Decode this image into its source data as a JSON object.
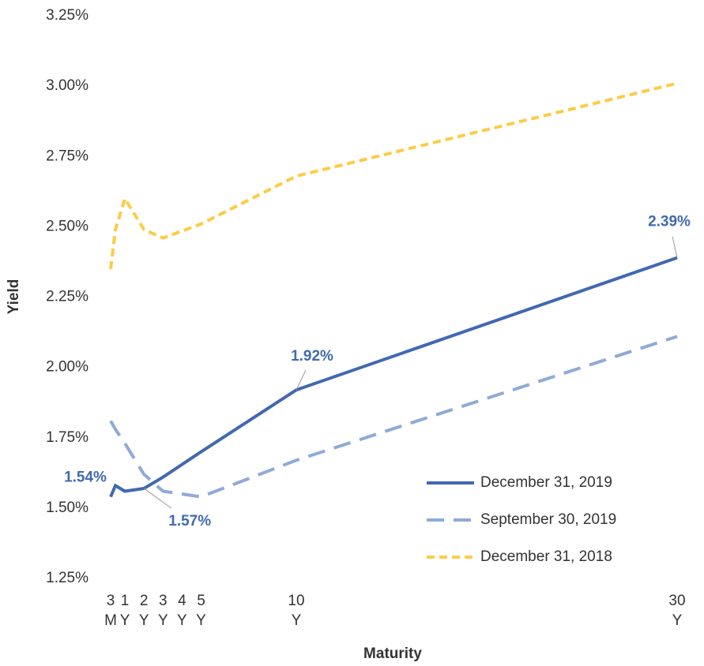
{
  "chart_data": {
    "type": "line",
    "x_label": "Maturity",
    "y_label": "Yield",
    "xlim": [
      0,
      30
    ],
    "xticks": [
      {
        "value": 0.25,
        "label": [
          "3",
          "M"
        ]
      },
      {
        "value": 1,
        "label": [
          "1",
          "Y"
        ]
      },
      {
        "value": 2,
        "label": [
          "2",
          "Y"
        ]
      },
      {
        "value": 3,
        "label": [
          "3",
          "Y"
        ]
      },
      {
        "value": 4,
        "label": [
          "4",
          "Y"
        ]
      },
      {
        "value": 5,
        "label": [
          "5",
          "Y"
        ]
      },
      {
        "value": 10,
        "label": [
          "10",
          "Y"
        ]
      },
      {
        "value": 30,
        "label": [
          "30",
          "Y"
        ]
      }
    ],
    "ylim": [
      1.25,
      3.25
    ],
    "yticks": [
      {
        "value": 1.25,
        "label": "1.25%"
      },
      {
        "value": 1.5,
        "label": "1.50%"
      },
      {
        "value": 1.75,
        "label": "1.75%"
      },
      {
        "value": 2.0,
        "label": "2.00%"
      },
      {
        "value": 2.25,
        "label": "2.25%"
      },
      {
        "value": 2.5,
        "label": "2.50%"
      },
      {
        "value": 2.75,
        "label": "2.75%"
      },
      {
        "value": 3.0,
        "label": "3.00%"
      },
      {
        "value": 3.25,
        "label": "3.25%"
      }
    ],
    "grid": false,
    "legend": "lower right",
    "x": [
      0.25,
      0.5,
      1,
      2,
      3,
      5,
      10,
      30
    ],
    "series": [
      {
        "name": "December 31, 2019",
        "color": "#4169b0",
        "dash": "solid",
        "values": [
          1.54,
          1.58,
          1.56,
          1.57,
          1.61,
          1.7,
          1.92,
          2.39
        ],
        "value_labels": [
          "1.54%",
          null,
          null,
          "1.57%",
          null,
          null,
          "1.92%",
          "2.39%"
        ]
      },
      {
        "name": "September 30, 2019",
        "color": "#8eaad8",
        "dash": "long",
        "values": [
          1.81,
          1.78,
          1.73,
          1.62,
          1.56,
          1.54,
          1.67,
          2.11
        ]
      },
      {
        "name": "December 31, 2018",
        "color": "#fdcb46",
        "dash": "short",
        "values": [
          2.35,
          2.49,
          2.6,
          2.49,
          2.46,
          2.51,
          2.68,
          3.01
        ]
      }
    ]
  }
}
